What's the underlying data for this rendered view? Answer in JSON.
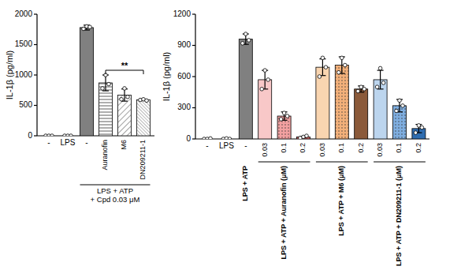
{
  "chart_data": [
    {
      "type": "bar",
      "y_label": "IL-1β (pg/ml)",
      "categories": [
        "-",
        "LPS",
        "-",
        "Auranofin",
        "M6",
        "DN209211-1"
      ],
      "values": [
        0,
        0,
        1780,
        870,
        670,
        590
      ],
      "errors": [
        0,
        0,
        40,
        130,
        100,
        10
      ],
      "points": [
        [
          0,
          0,
          0
        ],
        [
          0,
          0,
          0
        ],
        [
          1760,
          1800,
          1790
        ],
        [
          780,
          1000,
          850
        ],
        [
          600,
          780,
          640
        ],
        [
          590,
          600,
          580
        ]
      ],
      "colors": [
        "#ffffff",
        "#ffffff",
        "#808080",
        "#ffffff",
        "#ffffff",
        "#ffffff"
      ],
      "ylim": [
        0,
        2000
      ],
      "yticks": [
        0,
        500,
        1000,
        1500,
        2000
      ],
      "groups": [
        {
          "lines": [
            "LPS + ATP",
            "+ Cpd 0.03 μM"
          ],
          "categories": [
            2,
            5
          ]
        }
      ],
      "annotations": [
        {
          "text": "**",
          "categories": [
            3,
            5
          ]
        }
      ]
    },
    {
      "type": "bar",
      "y_label": "IL-1β (pg/ml)",
      "categories": [
        "-",
        "LPS",
        "-",
        "0.03",
        "0.1",
        "0.2",
        "0.03",
        "0.1",
        "0.2",
        "0.03",
        "0.1",
        "0.2"
      ],
      "values": [
        0,
        0,
        960,
        570,
        220,
        20,
        690,
        710,
        480,
        570,
        320,
        100
      ],
      "errors": [
        0,
        0,
        50,
        90,
        40,
        5,
        80,
        80,
        30,
        90,
        60,
        40
      ],
      "points": [
        [
          0,
          0,
          5
        ],
        [
          0,
          5,
          0
        ],
        [
          920,
          1010,
          950
        ],
        [
          480,
          660,
          570
        ],
        [
          190,
          250,
          220
        ],
        [
          10,
          20,
          30
        ],
        [
          600,
          780,
          690
        ],
        [
          640,
          780,
          710
        ],
        [
          460,
          500,
          480
        ],
        [
          500,
          680,
          540
        ],
        [
          270,
          370,
          320
        ],
        [
          60,
          130,
          110
        ]
      ],
      "colors": [
        "#ffffff",
        "#ffffff",
        "#808080",
        "#f8c8c8",
        "#f2a0a0",
        "#d96a6a",
        "#f9d5b0",
        "#f3b07a",
        "#8b5a3a",
        "#bcd5ee",
        "#7faee0",
        "#2f6db0"
      ],
      "ylim": [
        0,
        1200
      ],
      "yticks": [
        0,
        300,
        600,
        900,
        1200
      ],
      "groups": [
        {
          "lines": [
            "LPS + ATP"
          ],
          "categories": [
            2,
            2
          ]
        },
        {
          "lines": [
            "LPS + ATP + Auranofin (μM)"
          ],
          "categories": [
            3,
            5
          ]
        },
        {
          "lines": [
            "LPS + ATP + M6 (μM)"
          ],
          "categories": [
            6,
            8
          ]
        },
        {
          "lines": [
            "LPS + ATP + DN209211-1 (μM)"
          ],
          "categories": [
            9,
            11
          ]
        }
      ]
    }
  ]
}
